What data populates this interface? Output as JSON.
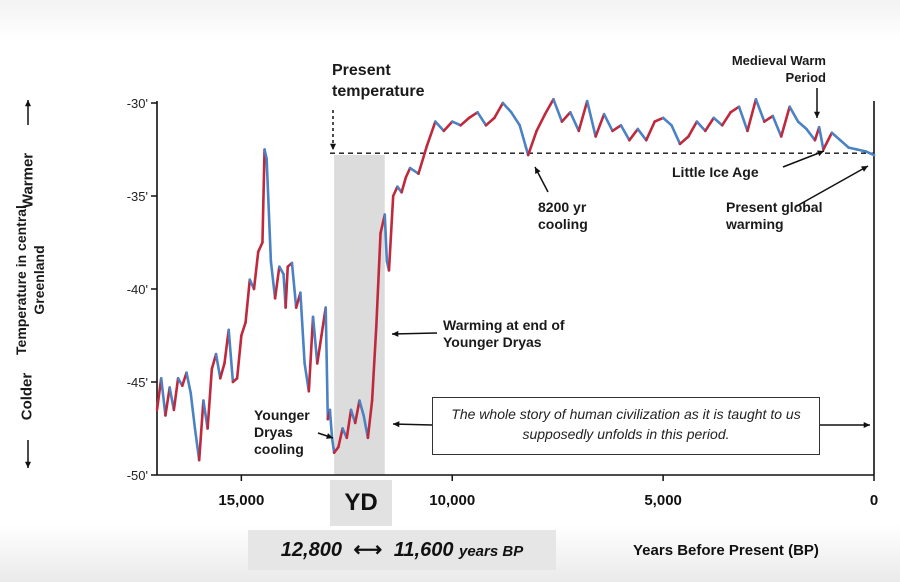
{
  "chart_data": {
    "type": "line",
    "title": "",
    "xlabel": "Years Before Present (BP)",
    "ylabel": "Temperature in central Greenland",
    "ylabel_warmer": "Warmer",
    "ylabel_colder": "Colder",
    "x_reversed": true,
    "xlim": [
      17000,
      0
    ],
    "ylim": [
      -50,
      -30
    ],
    "x_ticks": [
      15000,
      10000,
      5000,
      0
    ],
    "x_tick_labels": [
      "15,000",
      "10,000",
      "5,000",
      "0"
    ],
    "y_ticks": [
      -30,
      -35,
      -40,
      -45,
      -50
    ],
    "y_tick_labels": [
      "-30'",
      "-35'",
      "-40'",
      "-45'",
      "-50'"
    ],
    "present_temperature": -32.7,
    "colors": {
      "warm": "#c0283c",
      "cool": "#4a82c4",
      "shade": "#dcdcdc"
    },
    "series": [
      {
        "x": [
          17000,
          16900,
          16800,
          16700,
          16600,
          16500,
          16400,
          16300,
          16200,
          16100,
          16000,
          15900,
          15800,
          15700,
          15600,
          15500,
          15400,
          15300,
          15200,
          15100,
          15000,
          14900,
          14800,
          14700,
          14600,
          14500,
          14450,
          14400,
          14300,
          14200,
          14100,
          14000,
          13950,
          13900,
          13800,
          13700,
          13600,
          13500,
          13400,
          13300,
          13200,
          13100,
          13000,
          12950,
          12900,
          12850,
          12800,
          12700,
          12600,
          12500,
          12400,
          12300,
          12200,
          12100,
          12000,
          11900,
          11850,
          11800,
          11700,
          11600,
          11550,
          11500,
          11400,
          11300,
          11200,
          11100,
          11000,
          10800,
          10600,
          10400,
          10200,
          10000,
          9800,
          9600,
          9400,
          9200,
          9000,
          8800,
          8600,
          8400,
          8250,
          8200,
          8000,
          7800,
          7600,
          7400,
          7200,
          7000,
          6800,
          6600,
          6400,
          6200,
          6000,
          5800,
          5600,
          5400,
          5200,
          5000,
          4800,
          4600,
          4400,
          4200,
          4000,
          3800,
          3600,
          3400,
          3200,
          3000,
          2800,
          2600,
          2400,
          2200,
          2000,
          1800,
          1600,
          1400,
          1300,
          1200,
          1000,
          800,
          600,
          400,
          200,
          0
        ],
        "y": [
          -46.5,
          -44.8,
          -46.8,
          -45.3,
          -46.5,
          -44.8,
          -45.2,
          -44.5,
          -45.6,
          -47.5,
          -49.2,
          -46.0,
          -47.5,
          -44.3,
          -43.5,
          -44.8,
          -44.0,
          -42.2,
          -45.0,
          -44.8,
          -42.5,
          -41.8,
          -39.5,
          -40.0,
          -38.0,
          -37.5,
          -32.5,
          -33.0,
          -38.5,
          -40.5,
          -38.8,
          -39.2,
          -41.0,
          -38.8,
          -38.6,
          -41.0,
          -40.2,
          -44.0,
          -45.5,
          -41.5,
          -44.0,
          -42.5,
          -41.0,
          -47.0,
          -46.5,
          -48.0,
          -48.8,
          -48.5,
          -47.5,
          -48.0,
          -46.5,
          -47.2,
          -46.0,
          -46.8,
          -48.0,
          -46.0,
          -44.0,
          -42.0,
          -37.0,
          -36.0,
          -38.5,
          -39.0,
          -35.0,
          -34.5,
          -34.8,
          -34.0,
          -33.5,
          -33.8,
          -32.3,
          -31.0,
          -31.5,
          -31.0,
          -31.2,
          -30.8,
          -30.5,
          -31.2,
          -30.8,
          -30.0,
          -30.5,
          -31.2,
          -32.4,
          -32.8,
          -31.5,
          -30.6,
          -29.8,
          -31.0,
          -30.5,
          -31.5,
          -29.9,
          -31.8,
          -30.6,
          -31.5,
          -31.2,
          -32.0,
          -31.4,
          -32.0,
          -31.0,
          -30.8,
          -31.2,
          -32.2,
          -31.8,
          -31.0,
          -31.5,
          -30.8,
          -31.2,
          -30.5,
          -30.2,
          -31.5,
          -29.8,
          -31.0,
          -30.7,
          -31.8,
          -30.2,
          -31.0,
          -31.4,
          -32.0,
          -31.3,
          -32.5,
          -31.6,
          -32.0,
          -32.4,
          -32.5,
          -32.6,
          -32.8
        ]
      }
    ],
    "shaded_region": {
      "x_start": 12800,
      "x_end": 11600,
      "label": "YD"
    },
    "annotations": {
      "present_temperature": "Present temperature",
      "medieval_warm_period": "Medieval Warm Period",
      "little_ice_age": "Little Ice Age",
      "cooling_8200": "8200 yr cooling",
      "present_global_warming": "Present global warming",
      "warming_end_yd": "Warming at end of Younger Dryas",
      "younger_dryas_cooling": "Younger Dryas cooling",
      "civilization_note": "The whole story of human civilization as it is taught to us supposedly unfolds in this period."
    },
    "range_label": {
      "start": "12,800",
      "end": "11,600",
      "unit": "years BP",
      "arrow": "⟷"
    }
  }
}
